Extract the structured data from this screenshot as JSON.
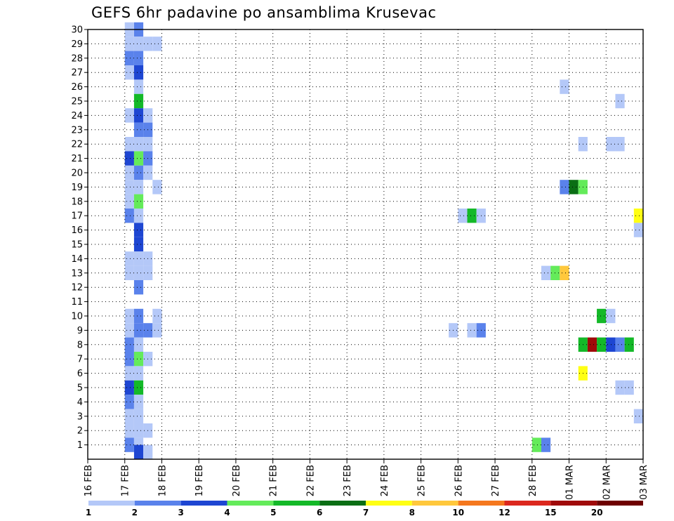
{
  "chart_data": {
    "type": "heatmap",
    "title": "GEFS 6hr padavine po ansamblima Krusevac",
    "xlabel": "",
    "ylabel": "",
    "x_start": "16 FEB 00Z",
    "x_step_hours": 6,
    "x_count": 60,
    "x_tick_labels": [
      "16 FEB",
      "17 FEB",
      "18 FEB",
      "19 FEB",
      "20 FEB",
      "21 FEB",
      "22 FEB",
      "23 FEB",
      "24 FEB",
      "25 FEB",
      "26 FEB",
      "27 FEB",
      "28 FEB",
      "01 MAR",
      "02 MAR",
      "03 MAR"
    ],
    "y_tick_labels": [
      "1",
      "2",
      "3",
      "4",
      "5",
      "6",
      "7",
      "8",
      "9",
      "10",
      "11",
      "12",
      "13",
      "14",
      "15",
      "16",
      "17",
      "18",
      "19",
      "20",
      "21",
      "22",
      "23",
      "24",
      "25",
      "26",
      "27",
      "28",
      "29",
      "30"
    ],
    "ylim": [
      0,
      30
    ],
    "grid": true,
    "legend": {
      "position": "bottom",
      "labels": [
        "1",
        "2",
        "3",
        "4",
        "5",
        "6",
        "7",
        "8",
        "10",
        "12",
        "15",
        "20"
      ],
      "colors": [
        "#b4c8f8",
        "#5a82eb",
        "#1e46d2",
        "#64eb5a",
        "#14b928",
        "#0a6e14",
        "#ffff14",
        "#ffc83c",
        "#f5781e",
        "#dc281e",
        "#a00a0a",
        "#6e0000"
      ]
    },
    "cells": [
      {
        "m": 30,
        "t": 5,
        "c": 1
      },
      {
        "m": 30,
        "t": 4,
        "c": 0
      },
      {
        "m": 29,
        "t": 4,
        "c": 0
      },
      {
        "m": 29,
        "t": 5,
        "c": 0
      },
      {
        "m": 29,
        "t": 6,
        "c": 0
      },
      {
        "m": 29,
        "t": 7,
        "c": 0
      },
      {
        "m": 28,
        "t": 4,
        "c": 1
      },
      {
        "m": 28,
        "t": 5,
        "c": 1
      },
      {
        "m": 27,
        "t": 4,
        "c": 0
      },
      {
        "m": 27,
        "t": 5,
        "c": 2
      },
      {
        "m": 26,
        "t": 5,
        "c": 0
      },
      {
        "m": 26,
        "t": 51,
        "c": 0
      },
      {
        "m": 25,
        "t": 5,
        "c": 4
      },
      {
        "m": 25,
        "t": 57,
        "c": 0
      },
      {
        "m": 24,
        "t": 4,
        "c": 0
      },
      {
        "m": 24,
        "t": 5,
        "c": 2
      },
      {
        "m": 24,
        "t": 6,
        "c": 0
      },
      {
        "m": 23,
        "t": 5,
        "c": 1
      },
      {
        "m": 23,
        "t": 6,
        "c": 1
      },
      {
        "m": 22,
        "t": 4,
        "c": 0
      },
      {
        "m": 22,
        "t": 5,
        "c": 0
      },
      {
        "m": 22,
        "t": 6,
        "c": 0
      },
      {
        "m": 22,
        "t": 53,
        "c": 0
      },
      {
        "m": 22,
        "t": 56,
        "c": 0
      },
      {
        "m": 22,
        "t": 57,
        "c": 0
      },
      {
        "m": 21,
        "t": 4,
        "c": 2
      },
      {
        "m": 21,
        "t": 5,
        "c": 3
      },
      {
        "m": 21,
        "t": 6,
        "c": 1
      },
      {
        "m": 20,
        "t": 4,
        "c": 0
      },
      {
        "m": 20,
        "t": 5,
        "c": 1
      },
      {
        "m": 20,
        "t": 6,
        "c": 0
      },
      {
        "m": 19,
        "t": 4,
        "c": 0
      },
      {
        "m": 19,
        "t": 5,
        "c": 0
      },
      {
        "m": 19,
        "t": 7,
        "c": 0
      },
      {
        "m": 19,
        "t": 51,
        "c": 1
      },
      {
        "m": 19,
        "t": 52,
        "c": 5
      },
      {
        "m": 19,
        "t": 53,
        "c": 3
      },
      {
        "m": 18,
        "t": 4,
        "c": 0
      },
      {
        "m": 18,
        "t": 5,
        "c": 3
      },
      {
        "m": 17,
        "t": 4,
        "c": 1
      },
      {
        "m": 17,
        "t": 5,
        "c": 0
      },
      {
        "m": 17,
        "t": 40,
        "c": 0
      },
      {
        "m": 17,
        "t": 41,
        "c": 4
      },
      {
        "m": 17,
        "t": 42,
        "c": 0
      },
      {
        "m": 17,
        "t": 59,
        "c": 6
      },
      {
        "m": 16,
        "t": 5,
        "c": 2
      },
      {
        "m": 16,
        "t": 59,
        "c": 0
      },
      {
        "m": 15,
        "t": 5,
        "c": 2
      },
      {
        "m": 14,
        "t": 4,
        "c": 0
      },
      {
        "m": 14,
        "t": 5,
        "c": 0
      },
      {
        "m": 14,
        "t": 6,
        "c": 0
      },
      {
        "m": 13,
        "t": 4,
        "c": 0
      },
      {
        "m": 13,
        "t": 5,
        "c": 0
      },
      {
        "m": 13,
        "t": 6,
        "c": 0
      },
      {
        "m": 13,
        "t": 49,
        "c": 0
      },
      {
        "m": 13,
        "t": 50,
        "c": 3
      },
      {
        "m": 13,
        "t": 51,
        "c": 7
      },
      {
        "m": 12,
        "t": 5,
        "c": 1
      },
      {
        "m": 10,
        "t": 4,
        "c": 0
      },
      {
        "m": 10,
        "t": 5,
        "c": 1
      },
      {
        "m": 10,
        "t": 7,
        "c": 0
      },
      {
        "m": 10,
        "t": 55,
        "c": 4
      },
      {
        "m": 10,
        "t": 56,
        "c": 0
      },
      {
        "m": 9,
        "t": 4,
        "c": 0
      },
      {
        "m": 9,
        "t": 5,
        "c": 1
      },
      {
        "m": 9,
        "t": 6,
        "c": 1
      },
      {
        "m": 9,
        "t": 7,
        "c": 0
      },
      {
        "m": 9,
        "t": 39,
        "c": 0
      },
      {
        "m": 9,
        "t": 41,
        "c": 0
      },
      {
        "m": 9,
        "t": 42,
        "c": 1
      },
      {
        "m": 8,
        "t": 4,
        "c": 1
      },
      {
        "m": 8,
        "t": 5,
        "c": 0
      },
      {
        "m": 8,
        "t": 53,
        "c": 4
      },
      {
        "m": 8,
        "t": 54,
        "c": 10
      },
      {
        "m": 8,
        "t": 55,
        "c": 4
      },
      {
        "m": 8,
        "t": 56,
        "c": 2
      },
      {
        "m": 8,
        "t": 57,
        "c": 1
      },
      {
        "m": 8,
        "t": 58,
        "c": 4
      },
      {
        "m": 7,
        "t": 4,
        "c": 1
      },
      {
        "m": 7,
        "t": 5,
        "c": 3
      },
      {
        "m": 7,
        "t": 6,
        "c": 0
      },
      {
        "m": 6,
        "t": 4,
        "c": 0
      },
      {
        "m": 6,
        "t": 5,
        "c": 0
      },
      {
        "m": 6,
        "t": 53,
        "c": 6
      },
      {
        "m": 5,
        "t": 4,
        "c": 2
      },
      {
        "m": 5,
        "t": 5,
        "c": 4
      },
      {
        "m": 5,
        "t": 57,
        "c": 0
      },
      {
        "m": 5,
        "t": 58,
        "c": 0
      },
      {
        "m": 4,
        "t": 4,
        "c": 1
      },
      {
        "m": 4,
        "t": 5,
        "c": 0
      },
      {
        "m": 3,
        "t": 4,
        "c": 0
      },
      {
        "m": 3,
        "t": 5,
        "c": 0
      },
      {
        "m": 3,
        "t": 59,
        "c": 0
      },
      {
        "m": 2,
        "t": 4,
        "c": 0
      },
      {
        "m": 2,
        "t": 5,
        "c": 0
      },
      {
        "m": 2,
        "t": 6,
        "c": 0
      },
      {
        "m": 1,
        "t": 4,
        "c": 1
      },
      {
        "m": 1,
        "t": 5,
        "c": 0
      },
      {
        "m": 1,
        "t": 48,
        "c": 3
      },
      {
        "m": 1,
        "t": 49,
        "c": 1
      },
      {
        "m": 0.5,
        "t": 5,
        "c": 2
      },
      {
        "m": 0.5,
        "t": 6,
        "c": 0
      }
    ]
  }
}
